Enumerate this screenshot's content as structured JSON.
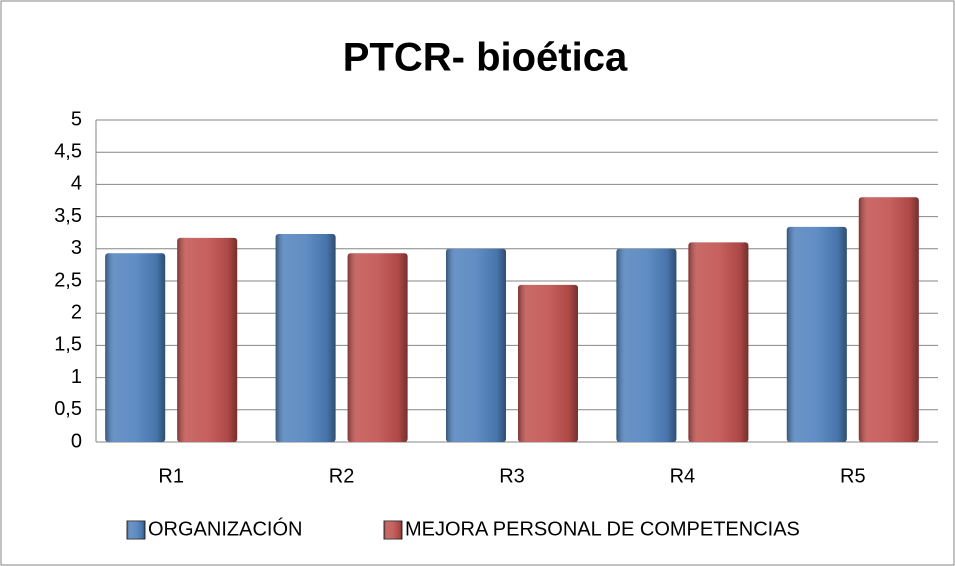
{
  "chart_data": {
    "type": "bar",
    "title": "PTCR- bioética",
    "categories": [
      "R1",
      "R2",
      "R3",
      "R4",
      "R5"
    ],
    "series": [
      {
        "name": "ORGANIZACIÓN",
        "color": "#4f81bd",
        "values": [
          2.93,
          3.23,
          3.0,
          3.0,
          3.34
        ]
      },
      {
        "name": "MEJORA PERSONAL DE COMPETENCIAS",
        "color": "#c0504d",
        "values": [
          3.17,
          2.93,
          2.44,
          3.1,
          3.8
        ]
      }
    ],
    "ylim": [
      0,
      5
    ],
    "yticks": [
      0,
      {
        "value": 0.5,
        "label": "0,5"
      },
      1,
      {
        "value": 1.5,
        "label": "1,5"
      },
      2,
      {
        "value": 2.5,
        "label": "2,5"
      },
      3,
      {
        "value": 3.5,
        "label": "3,5"
      },
      4,
      {
        "value": 4.5,
        "label": "4,5"
      },
      5
    ],
    "grid": true,
    "legend": "bottom"
  }
}
